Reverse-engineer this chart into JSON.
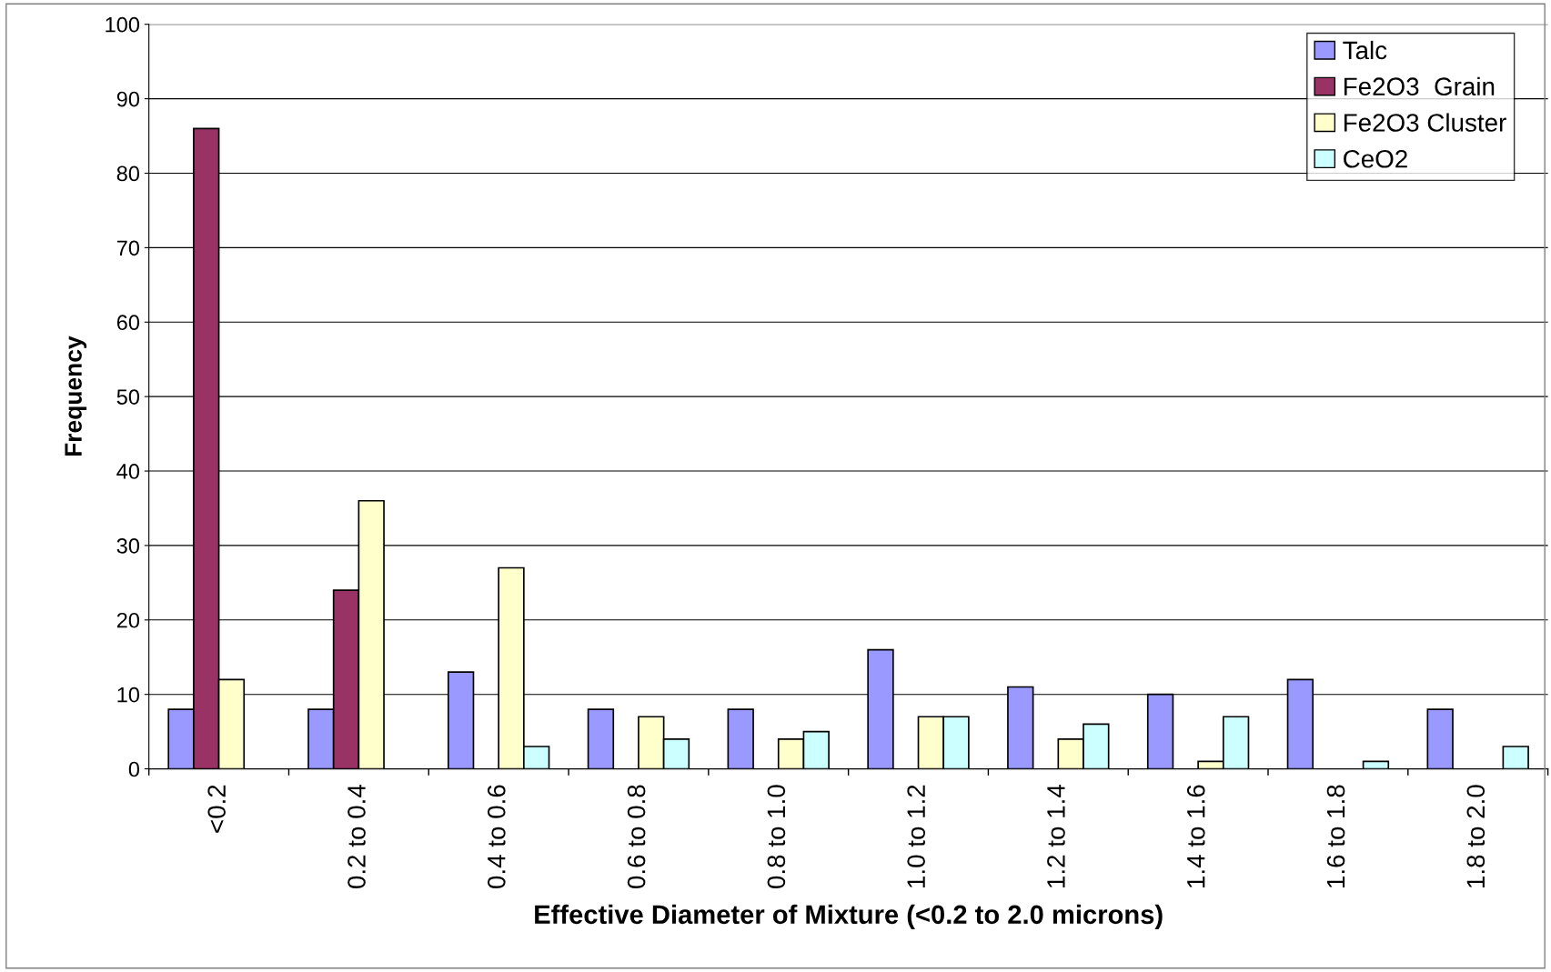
{
  "chart_data": {
    "type": "bar",
    "xlabel": "Effective Diameter of Mixture (<0.2 to 2.0 microns)",
    "ylabel": "Frequency",
    "categories": [
      "<0.2",
      "0.2 to 0.4",
      "0.4 to 0.6",
      "0.6 to 0.8",
      "0.8 to 1.0",
      "1.0 to 1.2",
      "1.2 to 1.4",
      "1.4 to 1.6",
      "1.6 to 1.8",
      "1.8 to 2.0"
    ],
    "series": [
      {
        "name": "Talc",
        "color": "#9999ff",
        "values": [
          8,
          8,
          13,
          8,
          8,
          16,
          11,
          10,
          12,
          8
        ]
      },
      {
        "name": "Fe2O3  Grain",
        "color": "#993366",
        "values": [
          86,
          24,
          null,
          null,
          null,
          null,
          null,
          null,
          null,
          null
        ]
      },
      {
        "name": "Fe2O3 Cluster",
        "color": "#ffffcc",
        "values": [
          12,
          36,
          27,
          7,
          4,
          7,
          4,
          1,
          null,
          null
        ]
      },
      {
        "name": "CeO2",
        "color": "#ccffff",
        "values": [
          null,
          null,
          3,
          4,
          5,
          7,
          6,
          7,
          1,
          3
        ]
      }
    ],
    "ylim": [
      0,
      100
    ],
    "yticks": [
      0,
      10,
      20,
      30,
      40,
      50,
      60,
      70,
      80,
      90,
      100
    ],
    "grid": "y",
    "legend": "top right"
  }
}
